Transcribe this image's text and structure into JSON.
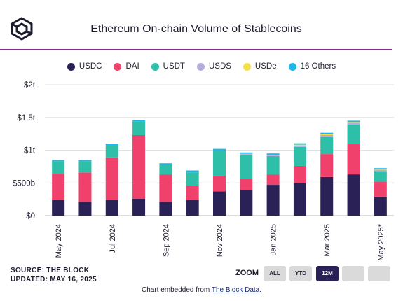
{
  "title": "Ethereum On-chain Volume of Stablecoins",
  "legend": [
    {
      "label": "USDC",
      "color": "#2a2257"
    },
    {
      "label": "DAI",
      "color": "#f0416c"
    },
    {
      "label": "USDT",
      "color": "#2ebfa8"
    },
    {
      "label": "USDS",
      "color": "#b9abe0"
    },
    {
      "label": "USDe",
      "color": "#f5dc4c"
    },
    {
      "label": "16 Others",
      "color": "#1ab8e8"
    }
  ],
  "chart_data": {
    "type": "bar",
    "stacked": true,
    "categories": [
      "May 2024",
      "Jun 2024",
      "Jul 2024",
      "Aug 2024",
      "Sep 2024",
      "Oct 2024",
      "Nov 2024",
      "Dec 2024",
      "Jan 2025",
      "Feb 2025",
      "Mar 2025",
      "Apr 2025",
      "May 2025*"
    ],
    "x_tick_labels": [
      "May 2024",
      "Jul 2024",
      "Sep 2024",
      "Nov 2024",
      "Jan 2025",
      "Mar 2025",
      "May 2025*"
    ],
    "y_ticks": [
      "$0",
      "$500b",
      "$1t",
      "$1.5t",
      "$2t"
    ],
    "ylim": [
      0,
      2000
    ],
    "y_unit": "billions USD",
    "series": [
      {
        "name": "USDC",
        "color": "#2a2257",
        "values": [
          240,
          210,
          240,
          260,
          210,
          240,
          370,
          390,
          470,
          500,
          590,
          630,
          290
        ]
      },
      {
        "name": "DAI",
        "color": "#f0416c",
        "values": [
          400,
          450,
          650,
          970,
          420,
          220,
          240,
          170,
          160,
          260,
          350,
          470,
          230
        ]
      },
      {
        "name": "USDT",
        "color": "#2ebfa8",
        "values": [
          190,
          170,
          190,
          210,
          150,
          200,
          380,
          370,
          280,
          290,
          260,
          290,
          160
        ]
      },
      {
        "name": "USDS",
        "color": "#b9abe0",
        "values": [
          0,
          0,
          0,
          0,
          0,
          0,
          0,
          10,
          15,
          20,
          30,
          30,
          20
        ]
      },
      {
        "name": "USDe",
        "color": "#f5dc4c",
        "values": [
          0,
          0,
          0,
          0,
          0,
          0,
          0,
          5,
          5,
          15,
          15,
          10,
          5
        ]
      },
      {
        "name": "16 Others",
        "color": "#1ab8e8",
        "values": [
          20,
          20,
          20,
          20,
          20,
          30,
          30,
          20,
          20,
          20,
          20,
          20,
          20
        ]
      }
    ],
    "grid": true,
    "legend_position": "top-center"
  },
  "footer": {
    "source": "SOURCE: THE BLOCK",
    "updated": "UPDATED: MAY 16, 2025"
  },
  "zoom": {
    "label": "ZOOM",
    "buttons": [
      "ALL",
      "YTD",
      "12M",
      "",
      ""
    ],
    "active": "12M"
  },
  "embed": {
    "prefix": "Chart embedded from ",
    "link": "The Block Data",
    "suffix": "."
  }
}
